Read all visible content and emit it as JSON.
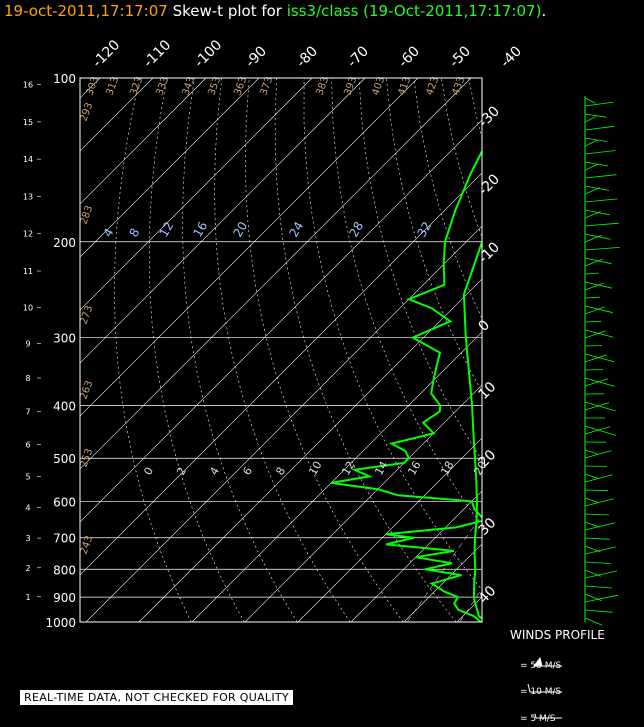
{
  "header": {
    "date": "19-oct-2011,17:17:07",
    "title_text": "Skew-t plot for",
    "source": "iss3/class (19-Oct-2011,17:17:07)",
    "dot": "."
  },
  "disclaimer": "REAL-TIME DATA, NOT CHECKED FOR QUALITY",
  "winds": {
    "title": "WINDS PROFILE",
    "legend": [
      "= 50 M/S",
      "= 10 M/S",
      "= 5 M/S"
    ]
  },
  "colors": {
    "temperature": "#00ff00",
    "dewpoint": "#00ff00",
    "grid": "#ffffff",
    "km_labels": "#ffffff",
    "dry_adiabats": "#c8a070",
    "mixing_ratio": "#a0c0ff",
    "title_date": "#ffa500",
    "title_source": "#22ff22"
  },
  "chart_data": {
    "type": "line",
    "pressure_levels": [
      100,
      200,
      300,
      400,
      500,
      600,
      700,
      800,
      900,
      1000
    ],
    "height_km_ticks": [
      1,
      2,
      3,
      4,
      5,
      6,
      7,
      8,
      9,
      10,
      11,
      12,
      13,
      14,
      15,
      16
    ],
    "isotherm_top_labels": [
      "-120",
      "-110",
      "-100",
      "-90",
      "-80",
      "-70",
      "-60",
      "-50",
      "-40"
    ],
    "isotherm_right_labels": [
      "-30",
      "-20",
      "-10",
      "0",
      "10",
      "20",
      "30",
      "40"
    ],
    "dry_adiabat_labels": [
      "303",
      "313",
      "323",
      "333",
      "343",
      "353",
      "363",
      "373",
      "383",
      "393",
      "403",
      "413",
      "423",
      "433",
      "293",
      "283",
      "273",
      "263",
      "253",
      "243"
    ],
    "mixing_ratio_labels": [
      "4",
      "8",
      "12",
      "16",
      "20",
      "24",
      "28",
      "32"
    ],
    "moist_labels": [
      "0",
      "2",
      "4",
      "6",
      "8",
      "10",
      "12",
      "14",
      "16",
      "18",
      "20"
    ],
    "series": [
      {
        "values": [
          [
            1000,
            15.5
          ],
          [
            975,
            13.0
          ],
          [
            950,
            11.5
          ],
          [
            925,
            10.0
          ],
          [
            900,
            8.5
          ],
          [
            850,
            6.0
          ],
          [
            800,
            3.5
          ],
          [
            750,
            0.5
          ],
          [
            700,
            -2.5
          ],
          [
            650,
            -5.5
          ],
          [
            600,
            -9.0
          ],
          [
            550,
            -13.0
          ],
          [
            500,
            -17.5
          ],
          [
            450,
            -22.5
          ],
          [
            400,
            -28.0
          ],
          [
            350,
            -34.5
          ],
          [
            300,
            -42.0
          ],
          [
            250,
            -50.5
          ],
          [
            200,
            -57.0
          ],
          [
            175,
            -60.0
          ],
          [
            150,
            -63.0
          ],
          [
            125,
            -67.0
          ],
          [
            110,
            -68.0
          ],
          [
            100,
            -67.0
          ]
        ]
      },
      {
        "values": [
          [
            1000,
            14.5
          ],
          [
            975,
            12.0
          ],
          [
            950,
            8.0
          ],
          [
            925,
            6.0
          ],
          [
            900,
            5.5
          ],
          [
            880,
            2.0
          ],
          [
            850,
            -2.0
          ],
          [
            820,
            2.0
          ],
          [
            800,
            -6.0
          ],
          [
            780,
            -2.0
          ],
          [
            760,
            -10.0
          ],
          [
            740,
            -4.0
          ],
          [
            720,
            -18.0
          ],
          [
            700,
            -14.0
          ],
          [
            690,
            -20.0
          ],
          [
            670,
            -8.0
          ],
          [
            650,
            -4.0
          ],
          [
            620,
            -8.0
          ],
          [
            600,
            -10.0
          ],
          [
            585,
            -25.0
          ],
          [
            570,
            -30.0
          ],
          [
            555,
            -40.0
          ],
          [
            540,
            -34.0
          ],
          [
            525,
            -38.0
          ],
          [
            510,
            -30.0
          ],
          [
            500,
            -30.0
          ],
          [
            485,
            -32.0
          ],
          [
            470,
            -36.0
          ],
          [
            450,
            -30.0
          ],
          [
            430,
            -34.0
          ],
          [
            410,
            -33.0
          ],
          [
            400,
            -34.0
          ],
          [
            380,
            -38.0
          ],
          [
            360,
            -40.0
          ],
          [
            340,
            -42.0
          ],
          [
            320,
            -44.0
          ],
          [
            300,
            -52.0
          ],
          [
            280,
            -48.0
          ],
          [
            265,
            -54.0
          ],
          [
            255,
            -60.0
          ],
          [
            240,
            -56.0
          ],
          [
            220,
            -60.0
          ],
          [
            200,
            -64.0
          ],
          [
            175,
            -68.0
          ],
          [
            150,
            -72.0
          ],
          [
            125,
            -76.0
          ],
          [
            110,
            -76.0
          ],
          [
            100,
            -74.0
          ]
        ]
      }
    ]
  }
}
